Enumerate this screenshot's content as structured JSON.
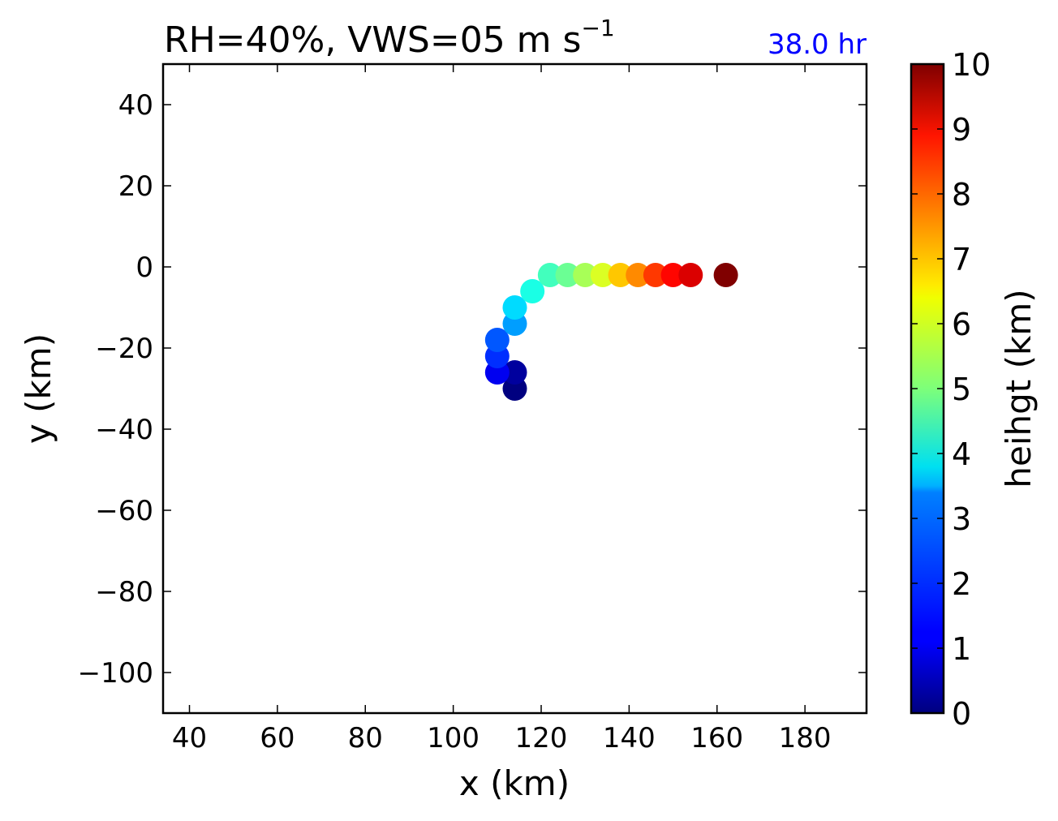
{
  "chart_data": {
    "type": "scatter",
    "title": "RH=40%, VWS=05 m s",
    "title_exponent": "−1",
    "annotation": "38.0 hr",
    "annotation_color": "#0000ff",
    "xlabel": "x (km)",
    "ylabel": "y (km)",
    "xlim": [
      34,
      194
    ],
    "ylim": [
      -110,
      50
    ],
    "xticks": [
      40,
      60,
      80,
      100,
      120,
      140,
      160,
      180
    ],
    "yticks": [
      40,
      20,
      0,
      -20,
      -40,
      -60,
      -80,
      -100
    ],
    "xtick_labels": [
      "40",
      "60",
      "80",
      "100",
      "120",
      "140",
      "160",
      "180"
    ],
    "ytick_labels": [
      "40",
      "20",
      "0",
      "−20",
      "−40",
      "−60",
      "−80",
      "−100"
    ],
    "colorbar": {
      "label": "heihgt (km)",
      "range": [
        0,
        10
      ],
      "colormap": "jet",
      "ticks": [
        0,
        1,
        2,
        3,
        4,
        5,
        6,
        7,
        8,
        9,
        10
      ],
      "tick_labels": [
        "0",
        "1",
        "2",
        "3",
        "4",
        "5",
        "6",
        "7",
        "8",
        "9",
        "10"
      ]
    },
    "points": [
      {
        "x": 114,
        "y": -30,
        "height": 0.0
      },
      {
        "x": 114,
        "y": -26,
        "height": 0.3
      },
      {
        "x": 110,
        "y": -26,
        "height": 1.1
      },
      {
        "x": 110,
        "y": -22,
        "height": 1.7
      },
      {
        "x": 110,
        "y": -18,
        "height": 2.1
      },
      {
        "x": 114,
        "y": -14,
        "height": 2.8
      },
      {
        "x": 114,
        "y": -10,
        "height": 3.4
      },
      {
        "x": 118,
        "y": -6,
        "height": 4.0
      },
      {
        "x": 122,
        "y": -2,
        "height": 4.4
      },
      {
        "x": 126,
        "y": -2,
        "height": 4.8
      },
      {
        "x": 130,
        "y": -2,
        "height": 5.4
      },
      {
        "x": 134,
        "y": -2,
        "height": 5.9
      },
      {
        "x": 138,
        "y": -2,
        "height": 6.8
      },
      {
        "x": 142,
        "y": -2,
        "height": 7.4
      },
      {
        "x": 146,
        "y": -2,
        "height": 8.2
      },
      {
        "x": 150,
        "y": -2,
        "height": 8.7
      },
      {
        "x": 154,
        "y": -2,
        "height": 9.1
      },
      {
        "x": 162,
        "y": -2,
        "height": 10.0
      }
    ]
  }
}
